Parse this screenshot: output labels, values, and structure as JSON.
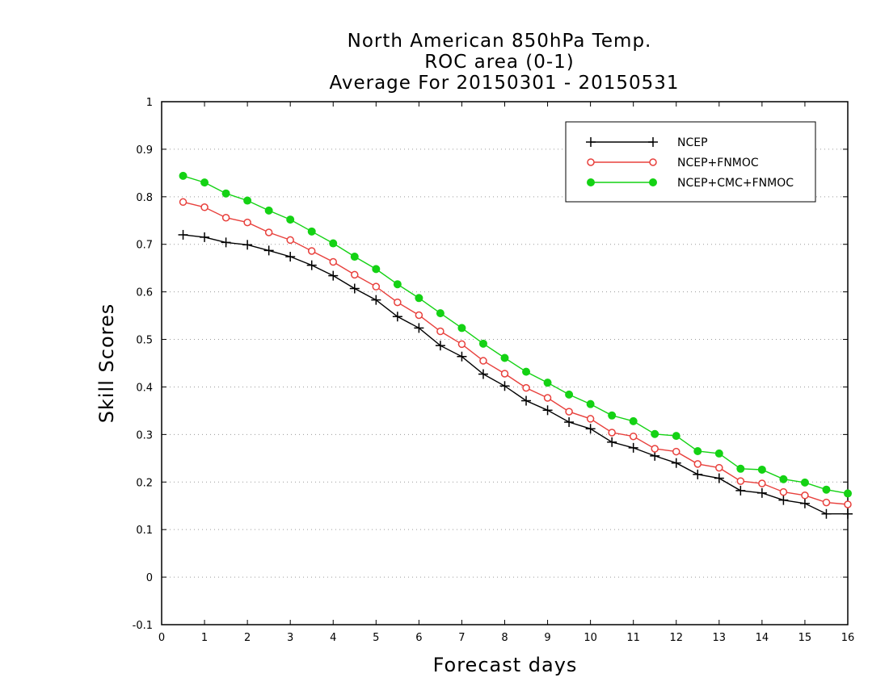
{
  "chart_data": {
    "type": "line",
    "title": [
      "North American 850hPa Temp.",
      "ROC area (0-1)",
      "Average For 20150301 - 20150531"
    ],
    "xlabel": "Forecast days",
    "ylabel": "Skill Scores",
    "xlim": [
      0,
      16
    ],
    "ylim": [
      -0.1,
      1
    ],
    "xticks": [
      0,
      1,
      2,
      3,
      4,
      5,
      6,
      7,
      8,
      9,
      10,
      11,
      12,
      13,
      14,
      15,
      16
    ],
    "yticks": [
      -0.1,
      0,
      0.1,
      0.2,
      0.3,
      0.4,
      0.5,
      0.6,
      0.7,
      0.8,
      0.9,
      1
    ],
    "ytick_labels": [
      "-0.1",
      "0",
      "0.1",
      "0.2",
      "0.3",
      "0.4",
      "0.5",
      "0.6",
      "0.7",
      "0.8",
      "0.9",
      "1"
    ],
    "grid": "dotted horizontal",
    "legend_position": "top-right",
    "x": [
      0.5,
      1.0,
      1.5,
      2.0,
      2.5,
      3.0,
      3.5,
      4.0,
      4.5,
      5.0,
      5.5,
      6.0,
      6.5,
      7.0,
      7.5,
      8.0,
      8.5,
      9.0,
      9.5,
      10.0,
      10.5,
      11.0,
      11.5,
      12.0,
      12.5,
      13.0,
      13.5,
      14.0,
      14.5,
      15.0,
      15.5,
      16.0
    ],
    "series": [
      {
        "name": "NCEP",
        "color": "#000000",
        "marker": "plus",
        "values": [
          0.72,
          0.715,
          0.704,
          0.699,
          0.687,
          0.674,
          0.656,
          0.634,
          0.607,
          0.583,
          0.548,
          0.524,
          0.487,
          0.464,
          0.427,
          0.402,
          0.371,
          0.351,
          0.326,
          0.312,
          0.284,
          0.272,
          0.255,
          0.24,
          0.216,
          0.208,
          0.182,
          0.177,
          0.162,
          0.155,
          0.133,
          0.133
        ]
      },
      {
        "name": "NCEP+FNMOC",
        "color": "#e8403c",
        "marker": "open-circle",
        "values": [
          0.789,
          0.778,
          0.756,
          0.746,
          0.725,
          0.709,
          0.686,
          0.663,
          0.636,
          0.611,
          0.578,
          0.551,
          0.517,
          0.49,
          0.455,
          0.428,
          0.398,
          0.377,
          0.348,
          0.333,
          0.304,
          0.296,
          0.27,
          0.264,
          0.238,
          0.23,
          0.202,
          0.197,
          0.179,
          0.172,
          0.157,
          0.153
        ]
      },
      {
        "name": "NCEP+CMC+FNMOC",
        "color": "#14d214",
        "marker": "filled-circle",
        "values": [
          0.844,
          0.83,
          0.807,
          0.792,
          0.771,
          0.752,
          0.727,
          0.702,
          0.674,
          0.648,
          0.616,
          0.587,
          0.555,
          0.524,
          0.491,
          0.461,
          0.432,
          0.409,
          0.384,
          0.364,
          0.34,
          0.328,
          0.301,
          0.297,
          0.265,
          0.26,
          0.228,
          0.226,
          0.206,
          0.199,
          0.184,
          0.176
        ]
      }
    ]
  }
}
